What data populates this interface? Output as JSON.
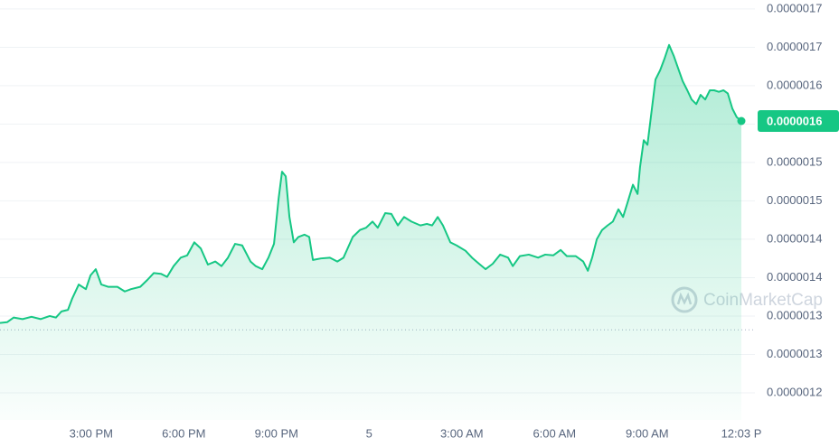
{
  "chart_data": {
    "type": "line",
    "x": [
      12.05,
      12.28,
      12.49,
      12.78,
      13.07,
      13.37,
      13.66,
      13.86,
      14.04,
      14.25,
      14.39,
      14.6,
      14.83,
      14.98,
      15.15,
      15.33,
      15.56,
      15.85,
      16.09,
      16.29,
      16.59,
      16.82,
      17.03,
      17.26,
      17.46,
      17.67,
      17.9,
      18.11,
      18.34,
      18.55,
      18.78,
      19.02,
      19.22,
      19.43,
      19.66,
      19.89,
      20.16,
      20.33,
      20.54,
      20.74,
      20.92,
      21.07,
      21.18,
      21.3,
      21.42,
      21.56,
      21.71,
      21.91,
      22.06,
      22.18,
      22.44,
      22.73,
      22.97,
      23.17,
      23.47,
      23.7,
      23.9,
      24.11,
      24.28,
      24.52,
      24.72,
      24.93,
      25.13,
      25.37,
      25.66,
      25.87,
      26.04,
      26.22,
      26.39,
      26.63,
      26.83,
      27.12,
      27.33,
      27.56,
      27.77,
      28.0,
      28.24,
      28.5,
      28.65,
      28.88,
      29.17,
      29.47,
      29.7,
      29.96,
      30.2,
      30.4,
      30.69,
      30.93,
      31.08,
      31.22,
      31.37,
      31.54,
      31.72,
      31.89,
      32.07,
      32.22,
      32.36,
      32.54,
      32.69,
      32.77,
      32.89,
      33.01,
      33.12,
      33.27,
      33.42,
      33.56,
      33.71,
      33.86,
      34.0,
      34.15,
      34.3,
      34.44,
      34.59,
      34.73,
      34.88,
      35.03,
      35.17,
      35.32,
      35.47,
      35.61,
      35.76,
      35.9,
      36.05
    ],
    "values": [
      1.291e-06,
      1.292e-06,
      1.298e-06,
      1.296e-06,
      1.299e-06,
      1.296e-06,
      1.3e-06,
      1.298e-06,
      1.306e-06,
      1.308e-06,
      1.323e-06,
      1.341e-06,
      1.335e-06,
      1.353e-06,
      1.361e-06,
      1.341e-06,
      1.338e-06,
      1.338e-06,
      1.332e-06,
      1.335e-06,
      1.338e-06,
      1.347e-06,
      1.356e-06,
      1.355e-06,
      1.351e-06,
      1.365e-06,
      1.376e-06,
      1.379e-06,
      1.396e-06,
      1.388e-06,
      1.367e-06,
      1.371e-06,
      1.365e-06,
      1.376e-06,
      1.394e-06,
      1.392e-06,
      1.371e-06,
      1.365e-06,
      1.361e-06,
      1.376e-06,
      1.394e-06,
      1.453e-06,
      1.488e-06,
      1.482e-06,
      1.429e-06,
      1.396e-06,
      1.403e-06,
      1.406e-06,
      1.403e-06,
      1.373e-06,
      1.375e-06,
      1.376e-06,
      1.371e-06,
      1.376e-06,
      1.403e-06,
      1.412e-06,
      1.415e-06,
      1.423e-06,
      1.415e-06,
      1.434e-06,
      1.433e-06,
      1.418e-06,
      1.429e-06,
      1.423e-06,
      1.418e-06,
      1.42e-06,
      1.418e-06,
      1.429e-06,
      1.418e-06,
      1.396e-06,
      1.392e-06,
      1.385e-06,
      1.376e-06,
      1.368e-06,
      1.361e-06,
      1.368e-06,
      1.38e-06,
      1.376e-06,
      1.365e-06,
      1.378e-06,
      1.38e-06,
      1.376e-06,
      1.38e-06,
      1.379e-06,
      1.386e-06,
      1.378e-06,
      1.378e-06,
      1.371e-06,
      1.359e-06,
      1.376e-06,
      1.4e-06,
      1.412e-06,
      1.418e-06,
      1.423e-06,
      1.439e-06,
      1.429e-06,
      1.447e-06,
      1.471e-06,
      1.459e-06,
      1.494e-06,
      1.529e-06,
      1.523e-06,
      1.559e-06,
      1.608e-06,
      1.62e-06,
      1.635e-06,
      1.653e-06,
      1.639e-06,
      1.623e-06,
      1.606e-06,
      1.594e-06,
      1.582e-06,
      1.576e-06,
      1.588e-06,
      1.582e-06,
      1.594e-06,
      1.594e-06,
      1.592e-06,
      1.594e-06,
      1.59e-06,
      1.57e-06,
      1.559e-06,
      1.554e-06
    ],
    "color": "#16c784",
    "xlim": [
      12.05,
      36.05
    ],
    "xticks": [
      {
        "value": 15,
        "label": "3:00 PM"
      },
      {
        "value": 18,
        "label": "6:00 PM"
      },
      {
        "value": 21,
        "label": "9:00 PM"
      },
      {
        "value": 24,
        "label": "5"
      },
      {
        "value": 27,
        "label": "3:00 AM"
      },
      {
        "value": 30,
        "label": "6:00 AM"
      },
      {
        "value": 33,
        "label": "9:00 AM"
      },
      {
        "value": 36.05,
        "label": "12:03 P"
      }
    ],
    "ylim": [
      1.1647e-06,
      1.7116e-06
    ],
    "yticks": [
      {
        "value": 1.2e-06,
        "label": "0.0000012"
      },
      {
        "value": 1.25e-06,
        "label": "0.0000013"
      },
      {
        "value": 1.3e-06,
        "label": "0.0000013"
      },
      {
        "value": 1.35e-06,
        "label": "0.0000014"
      },
      {
        "value": 1.4e-06,
        "label": "0.0000014"
      },
      {
        "value": 1.45e-06,
        "label": "0.0000015"
      },
      {
        "value": 1.5e-06,
        "label": "0.0000015"
      },
      {
        "value": 1.55e-06,
        "label": "0.0000016"
      },
      {
        "value": 1.6e-06,
        "label": "0.0000016"
      },
      {
        "value": 1.65e-06,
        "label": "0.0000017"
      },
      {
        "value": 1.7e-06,
        "label": "0.0000017"
      }
    ],
    "grid": true,
    "reference_line": 1.282e-06,
    "current_price": {
      "value": 1.554e-06,
      "label": "0.0000016"
    },
    "watermark": "CoinMarketCap"
  }
}
